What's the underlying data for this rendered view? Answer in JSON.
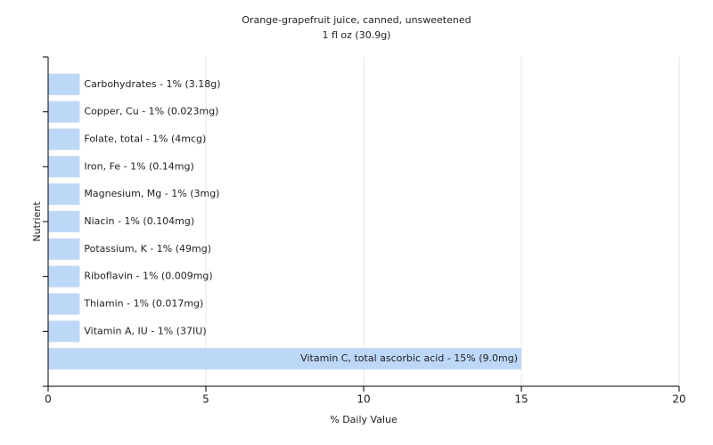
{
  "chart_data": {
    "type": "bar",
    "orientation": "horizontal",
    "title": "Orange-grapefruit juice, canned, unsweetened",
    "subtitle": "1 fl oz (30.9g)",
    "x_label": "% Daily Value",
    "y_label": "Nutrient",
    "categories": [
      "Carbohydrates - 1% (3.18g)",
      "Copper, Cu - 1% (0.023mg)",
      "Folate, total - 1% (4mcg)",
      "Iron, Fe - 1% (0.14mg)",
      "Magnesium, Mg - 1% (3mg)",
      "Niacin - 1% (0.104mg)",
      "Potassium, K - 1% (49mg)",
      "Riboflavin - 1% (0.009mg)",
      "Thiamin - 1% (0.017mg)",
      "Vitamin A, IU - 1% (37IU)",
      "Vitamin C, total ascorbic acid - 15% (9.0mg)"
    ],
    "values": [
      1,
      1,
      1,
      1,
      1,
      1,
      1,
      1,
      1,
      1,
      15
    ],
    "color": "#bdd7f7",
    "xlim": [
      0,
      20
    ],
    "xticks": [
      0,
      5,
      10,
      15,
      20
    ],
    "grid": true
  }
}
